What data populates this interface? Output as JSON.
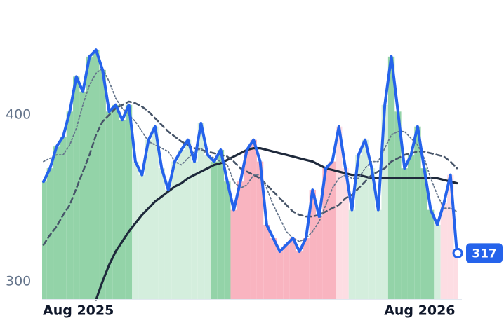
{
  "chart_data": {
    "type": "line",
    "categories": [
      "Aug 2025",
      null,
      null,
      null,
      null,
      null,
      null,
      null,
      null,
      null,
      null,
      null,
      null,
      null,
      null,
      null,
      null,
      null,
      null,
      null,
      null,
      null,
      null,
      null,
      null,
      null,
      null,
      null,
      null,
      null,
      null,
      null,
      null,
      null,
      null,
      null,
      null,
      null,
      null,
      null,
      null,
      null,
      null,
      null,
      null,
      null,
      null,
      null,
      null,
      null,
      null,
      null,
      "Aug 2026",
      null,
      null,
      null,
      null,
      null,
      null,
      null,
      null,
      null,
      null,
      null
    ],
    "series": [
      {
        "color": "#2563eb",
        "values": [
          360,
          368,
          381,
          387,
          402,
          423,
          414,
          435,
          439,
          427,
          402,
          406,
          397,
          406,
          372,
          364,
          385,
          393,
          368,
          355,
          372,
          379,
          385,
          372,
          395,
          376,
          372,
          379,
          360,
          343,
          360,
          379,
          385,
          372,
          334,
          326,
          318,
          322,
          326,
          318,
          326,
          355,
          339,
          368,
          372,
          393,
          368,
          343,
          376,
          385,
          368,
          343,
          406,
          435,
          402,
          368,
          376,
          393,
          368,
          343,
          334,
          347,
          364,
          317
        ]
      },
      {
        "color": "#64748b",
        "style": "dotted",
        "values": [
          372,
          374,
          376,
          376,
          382,
          392,
          406,
          418,
          425,
          428,
          420,
          410,
          404,
          400,
          396,
          390,
          384,
          382,
          380,
          378,
          372,
          370,
          374,
          378,
          380,
          376,
          374,
          372,
          370,
          360,
          356,
          358,
          364,
          364,
          356,
          346,
          338,
          330,
          326,
          324,
          326,
          330,
          336,
          346,
          356,
          362,
          364,
          362,
          362,
          368,
          372,
          372,
          380,
          388,
          390,
          390,
          386,
          382,
          374,
          362,
          352,
          344,
          344,
          342
        ]
      },
      {
        "color": "#475569",
        "style": "dashed",
        "values": [
          322,
          328,
          333,
          340,
          346,
          356,
          366,
          376,
          388,
          396,
          400,
          404,
          406,
          408,
          407,
          405,
          402,
          398,
          394,
          390,
          387,
          384,
          382,
          380,
          379,
          378,
          377,
          376,
          375,
          372,
          368,
          366,
          364,
          362,
          358,
          354,
          350,
          346,
          342,
          340,
          339,
          339,
          340,
          342,
          344,
          346,
          350,
          352,
          356,
          360,
          364,
          366,
          368,
          372,
          374,
          376,
          377,
          378,
          378,
          377,
          376,
          375,
          372,
          368
        ]
      },
      {
        "color": "#1e293b",
        "style": "solid",
        "values": [
          null,
          null,
          null,
          null,
          null,
          null,
          null,
          null,
          289,
          300,
          310,
          318,
          324,
          330,
          335,
          340,
          344,
          348,
          351,
          354,
          357,
          359,
          362,
          364,
          366,
          368,
          370,
          371,
          373,
          375,
          377,
          379,
          380,
          380,
          379,
          378,
          377,
          376,
          375,
          374,
          373,
          372,
          370,
          368,
          367,
          366,
          365,
          364,
          364,
          363,
          362,
          362,
          362,
          362,
          362,
          362,
          362,
          362,
          362,
          362,
          362,
          361,
          360,
          359
        ]
      }
    ],
    "band_colors": [
      "#93d3a8",
      "#93d3a8",
      "#93d3a8",
      "#93d3a8",
      "#93d3a8",
      "#93d3a8",
      "#93d3a8",
      "#93d3a8",
      "#93d3a8",
      "#93d3a8",
      "#93d3a8",
      "#93d3a8",
      "#93d3a8",
      "#93d3a8",
      "#d4eedd",
      "#d4eedd",
      "#d4eedd",
      "#d4eedd",
      "#d4eedd",
      "#d4eedd",
      "#d4eedd",
      "#d4eedd",
      "#d4eedd",
      "#d4eedd",
      "#d4eedd",
      "#d4eedd",
      "#93d3a8",
      "#93d3a8",
      "#93d3a8",
      "#f9b4c0",
      "#f9b4c0",
      "#f9b4c0",
      "#f9b4c0",
      "#f9b4c0",
      "#f9b4c0",
      "#f9b4c0",
      "#f9b4c0",
      "#f9b4c0",
      "#f9b4c0",
      "#f9b4c0",
      "#f9b4c0",
      "#f9b4c0",
      "#f9b4c0",
      "#f9b4c0",
      "#f9b4c0",
      "#fddde3",
      "#fddde3",
      "#d4eedd",
      "#d4eedd",
      "#d4eedd",
      "#d4eedd",
      "#d4eedd",
      "#d4eedd",
      "#93d3a8",
      "#93d3a8",
      "#93d3a8",
      "#93d3a8",
      "#93d3a8",
      "#93d3a8",
      "#93d3a8",
      "#d4eedd",
      "#fddde3",
      "#fddde3",
      "#fddde3"
    ],
    "ylim": [
      289,
      469
    ],
    "yticks": [
      300,
      400
    ],
    "grid": false
  }
}
